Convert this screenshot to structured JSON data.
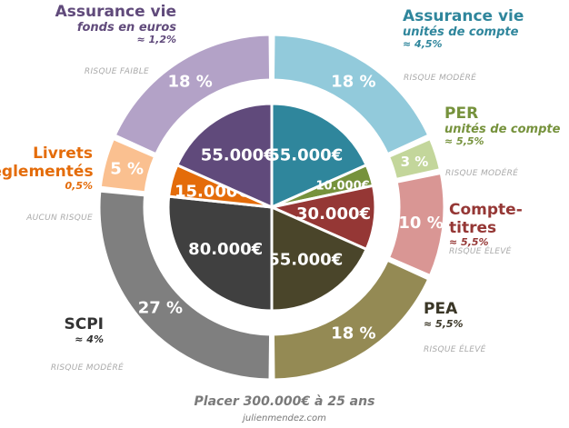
{
  "chart_data": {
    "type": "pie",
    "title": "Placer 300.000€ à 25 ans",
    "source": "julienmendez.com",
    "slices": [
      {
        "name": "Assurance vie",
        "sub": "unités de compte",
        "rate": "≈ 4,5%",
        "risk": "RISQUE MODÉRÉ",
        "amount": 55000,
        "amount_label": "55.000€",
        "percent_label": "18 %",
        "inner_color": "#2f869c",
        "outer_color": "#92cadb",
        "text_color": "#2f869c"
      },
      {
        "name": "PER",
        "sub": "unités de compte",
        "rate": "≈ 5,5%",
        "risk": "RISQUE MODÉRÉ",
        "amount": 10000,
        "amount_label": "10.000€",
        "percent_label": "3 %",
        "inner_color": "#76923c",
        "outer_color": "#c3d69b",
        "text_color": "#76923c"
      },
      {
        "name": "Compte-titres",
        "sub": "",
        "rate": "≈ 5,5%",
        "risk": "RISQUE ÉLEVÉ",
        "amount": 30000,
        "amount_label": "30.000€",
        "percent_label": "10 %",
        "inner_color": "#953735",
        "outer_color": "#d99694",
        "text_color": "#953735"
      },
      {
        "name": "PEA",
        "sub": "",
        "rate": "≈ 5,5%",
        "risk": "RISQUE ÉLEVÉ",
        "amount": 55000,
        "amount_label": "55.000€",
        "percent_label": "18 %",
        "inner_color": "#4a452a",
        "outer_color": "#948a54",
        "text_color": "#3a3626"
      },
      {
        "name": "SCPI",
        "sub": "",
        "rate": "≈ 4%",
        "risk": "RISQUE MODÉRÉ",
        "amount": 80000,
        "amount_label": "80.000€",
        "percent_label": "27 %",
        "inner_color": "#404040",
        "outer_color": "#7f7f7f",
        "text_color": "#333333"
      },
      {
        "name": "Livrets réglementés",
        "sub": "",
        "rate": "0,5%",
        "risk": "AUCUN RISQUE",
        "amount": 15000,
        "amount_label": "15.000€",
        "percent_label": "5 %",
        "inner_color": "#e46c0a",
        "outer_color": "#fac090",
        "text_color": "#e46c0a"
      },
      {
        "name": "Assurance vie",
        "sub": "fonds en euros",
        "rate": "≈ 1,2%",
        "risk": "RISQUE FAIBLE",
        "amount": 55000,
        "amount_label": "55.000€",
        "percent_label": "18 %",
        "inner_color": "#604a7b",
        "outer_color": "#b3a2c7",
        "text_color": "#604a7b"
      }
    ]
  }
}
